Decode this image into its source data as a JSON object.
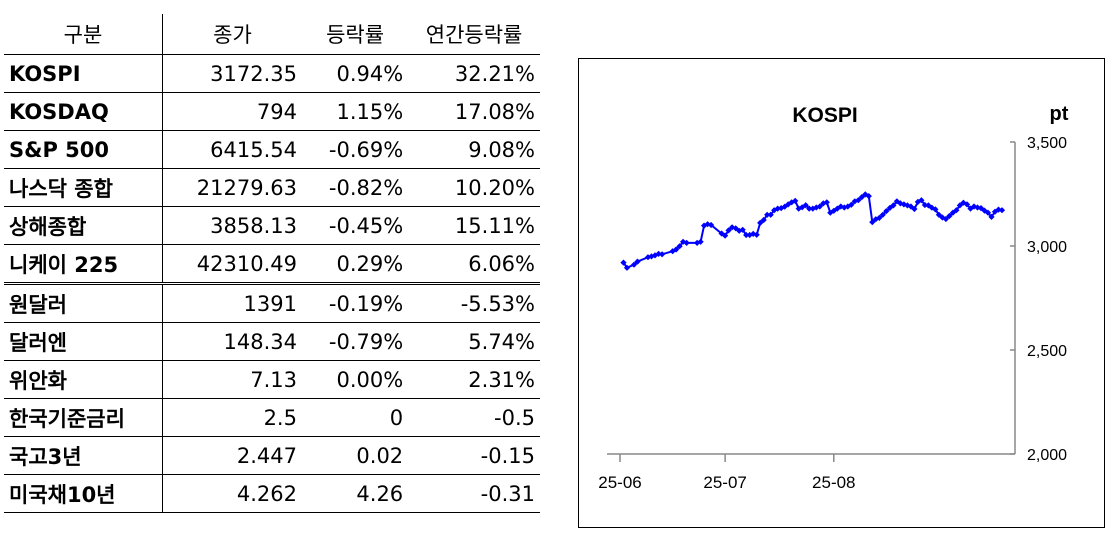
{
  "table": {
    "headers": [
      "구분",
      "종가",
      "등락률",
      "연간등락률"
    ],
    "rows": [
      {
        "name": "KOSPI",
        "close": "3172.35",
        "change": "0.94%",
        "ytd": "32.21%"
      },
      {
        "name": "KOSDAQ",
        "close": "794",
        "change": "1.15%",
        "ytd": "17.08%"
      },
      {
        "name": "S&P 500",
        "close": "6415.54",
        "change": "-0.69%",
        "ytd": "9.08%"
      },
      {
        "name": "나스닥 종합",
        "close": "21279.63",
        "change": "-0.82%",
        "ytd": "10.20%"
      },
      {
        "name": "상해종합",
        "close": "3858.13",
        "change": "-0.45%",
        "ytd": "15.11%"
      },
      {
        "name": "니케이 225",
        "close": "42310.49",
        "change": "0.29%",
        "ytd": "6.06%"
      },
      {
        "name": "원달러",
        "close": "1391",
        "change": "-0.19%",
        "ytd": "-5.53%"
      },
      {
        "name": "달러엔",
        "close": "148.34",
        "change": "-0.79%",
        "ytd": "5.74%"
      },
      {
        "name": "위안화",
        "close": "7.13",
        "change": "0.00%",
        "ytd": "2.31%"
      },
      {
        "name": "한국기준금리",
        "close": "2.5",
        "change": "0",
        "ytd": "-0.5"
      },
      {
        "name": "국고3년",
        "close": "2.447",
        "change": "0.02",
        "ytd": "-0.15"
      },
      {
        "name": "미국채10년",
        "close": "4.262",
        "change": "4.26",
        "ytd": "-0.31"
      }
    ]
  },
  "chart_data": {
    "type": "line",
    "title": "KOSPI",
    "ylabel": "pt",
    "ylim": [
      2000,
      3500
    ],
    "yticks": [
      2000,
      2500,
      3000,
      3500
    ],
    "ytick_labels": [
      "2,000",
      "2,500",
      "3,000",
      "3,500"
    ],
    "xticks": [
      "2025-06-01",
      "2025-07-01",
      "2025-08-01"
    ],
    "xtick_labels": [
      "25-06",
      "25-07",
      "25-08"
    ],
    "axis_position": "right",
    "grid": false,
    "legend": "none",
    "series": [
      {
        "color": "#0000ff",
        "points": [
          [
            "2025-06-02",
            2920
          ],
          [
            "2025-06-03",
            2895
          ],
          [
            "2025-06-05",
            2910
          ],
          [
            "2025-06-06",
            2925
          ],
          [
            "2025-06-09",
            2946
          ],
          [
            "2025-06-10",
            2950
          ],
          [
            "2025-06-11",
            2955
          ],
          [
            "2025-06-12",
            2962
          ],
          [
            "2025-06-13",
            2960
          ],
          [
            "2025-06-16",
            2975
          ],
          [
            "2025-06-17",
            2983
          ],
          [
            "2025-06-18",
            2999
          ],
          [
            "2025-06-19",
            3020
          ],
          [
            "2025-06-20",
            3015
          ],
          [
            "2025-06-23",
            3015
          ],
          [
            "2025-06-24",
            3020
          ],
          [
            "2025-06-25",
            3098
          ],
          [
            "2025-06-26",
            3105
          ],
          [
            "2025-06-27",
            3101
          ],
          [
            "2025-06-30",
            3060
          ],
          [
            "2025-07-01",
            3050
          ],
          [
            "2025-07-02",
            3075
          ],
          [
            "2025-07-03",
            3090
          ],
          [
            "2025-07-04",
            3085
          ],
          [
            "2025-07-05",
            3073
          ],
          [
            "2025-07-06",
            3078
          ],
          [
            "2025-07-07",
            3053
          ],
          [
            "2025-07-08",
            3053
          ],
          [
            "2025-07-09",
            3058
          ],
          [
            "2025-07-10",
            3054
          ],
          [
            "2025-07-11",
            3111
          ],
          [
            "2025-07-12",
            3125
          ],
          [
            "2025-07-13",
            3150
          ],
          [
            "2025-07-14",
            3150
          ],
          [
            "2025-07-15",
            3172
          ],
          [
            "2025-07-16",
            3180
          ],
          [
            "2025-07-17",
            3182
          ],
          [
            "2025-07-18",
            3189
          ],
          [
            "2025-07-19",
            3200
          ],
          [
            "2025-07-20",
            3210
          ],
          [
            "2025-07-21",
            3217
          ],
          [
            "2025-07-22",
            3180
          ],
          [
            "2025-07-23",
            3186
          ],
          [
            "2025-07-24",
            3196
          ],
          [
            "2025-07-25",
            3180
          ],
          [
            "2025-07-26",
            3180
          ],
          [
            "2025-07-27",
            3185
          ],
          [
            "2025-07-28",
            3190
          ],
          [
            "2025-07-29",
            3205
          ],
          [
            "2025-07-30",
            3210
          ],
          [
            "2025-07-31",
            3160
          ],
          [
            "2025-08-01",
            3169
          ],
          [
            "2025-08-02",
            3180
          ],
          [
            "2025-08-03",
            3190
          ],
          [
            "2025-08-04",
            3185
          ],
          [
            "2025-08-05",
            3190
          ],
          [
            "2025-08-06",
            3198
          ],
          [
            "2025-08-07",
            3215
          ],
          [
            "2025-08-08",
            3220
          ],
          [
            "2025-08-09",
            3235
          ],
          [
            "2025-08-10",
            3248
          ],
          [
            "2025-08-11",
            3240
          ],
          [
            "2025-08-12",
            3115
          ],
          [
            "2025-08-13",
            3129
          ],
          [
            "2025-08-14",
            3135
          ],
          [
            "2025-08-15",
            3150
          ],
          [
            "2025-08-16",
            3168
          ],
          [
            "2025-08-17",
            3183
          ],
          [
            "2025-08-18",
            3195
          ],
          [
            "2025-08-19",
            3215
          ],
          [
            "2025-08-20",
            3205
          ],
          [
            "2025-08-21",
            3200
          ],
          [
            "2025-08-22",
            3195
          ],
          [
            "2025-08-23",
            3190
          ],
          [
            "2025-08-24",
            3178
          ],
          [
            "2025-08-25",
            3212
          ],
          [
            "2025-08-26",
            3220
          ],
          [
            "2025-08-27",
            3197
          ],
          [
            "2025-08-28",
            3195
          ],
          [
            "2025-08-29",
            3184
          ],
          [
            "2025-08-30",
            3176
          ],
          [
            "2025-08-31",
            3150
          ],
          [
            "2025-09-01",
            3137
          ],
          [
            "2025-09-02",
            3130
          ],
          [
            "2025-09-03",
            3144
          ],
          [
            "2025-09-04",
            3160
          ],
          [
            "2025-09-05",
            3172
          ],
          [
            "2025-09-06",
            3195
          ],
          [
            "2025-09-07",
            3208
          ],
          [
            "2025-09-08",
            3200
          ],
          [
            "2025-09-09",
            3180
          ],
          [
            "2025-09-10",
            3190
          ],
          [
            "2025-09-11",
            3185
          ],
          [
            "2025-09-12",
            3182
          ],
          [
            "2025-09-13",
            3170
          ],
          [
            "2025-09-14",
            3160
          ],
          [
            "2025-09-15",
            3140
          ],
          [
            "2025-09-16",
            3165
          ],
          [
            "2025-09-17",
            3175
          ],
          [
            "2025-09-18",
            3172
          ]
        ]
      }
    ]
  }
}
